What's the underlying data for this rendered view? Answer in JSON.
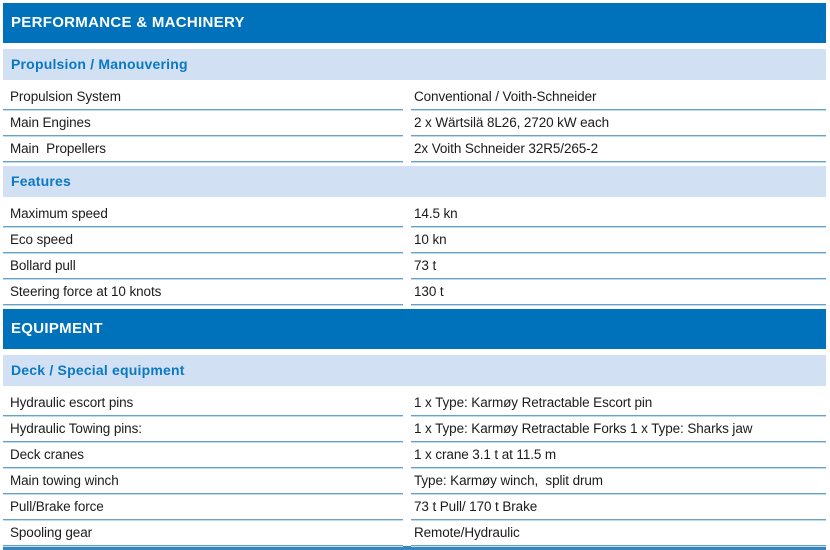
{
  "theme": {
    "header_bg": "#0072BC",
    "header_text": "#FFFFFF",
    "subheader_bg": "#D1E0F2",
    "subheader_text": "#0A78C2",
    "row_text": "#1B1B1B",
    "separator_dark": "#69A0C6",
    "separator_light": "#BFDCEE",
    "bottom_rule": "#3787BD"
  },
  "table": {
    "groups": [
      {
        "header": "PERFORMANCE & MACHINERY",
        "subsections": [
          {
            "title": "Propulsion / Manouvering",
            "rows": [
              {
                "label": "Propulsion System",
                "value": "Conventional / Voith-Schneider"
              },
              {
                "label": "Main Engines",
                "value": "2 x Wärtsilä 8L26, 2720 kW each"
              },
              {
                "label": "Main  Propellers",
                "value": "2x Voith Schneider 32R5/265-2"
              }
            ]
          },
          {
            "title": "Features",
            "rows": [
              {
                "label": "Maximum speed",
                "value": "14.5 kn"
              },
              {
                "label": "Eco speed",
                "value": "10 kn"
              },
              {
                "label": "Bollard pull",
                "value": "73 t"
              },
              {
                "label": "Steering force at 10 knots",
                "value": "130 t"
              }
            ]
          }
        ]
      },
      {
        "header": "EQUIPMENT",
        "subsections": [
          {
            "title": "Deck / Special equipment",
            "rows": [
              {
                "label": "Hydraulic escort pins",
                "value": "1 x Type: Karmøy Retractable Escort pin"
              },
              {
                "label": "Hydraulic Towing pins:",
                "value": "1 x Type: Karmøy Retractable Forks 1 x Type: Sharks jaw"
              },
              {
                "label": "Deck cranes",
                "value": "1 x crane 3.1 t at 11.5 m"
              },
              {
                "label": "Main towing winch",
                "value": "Type: Karmøy winch,  split drum"
              },
              {
                "label": "Pull/Brake force",
                "value": "73 t Pull/ 170 t Brake"
              },
              {
                "label": "Spooling gear",
                "value": "Remote/Hydraulic"
              }
            ]
          }
        ]
      }
    ]
  }
}
